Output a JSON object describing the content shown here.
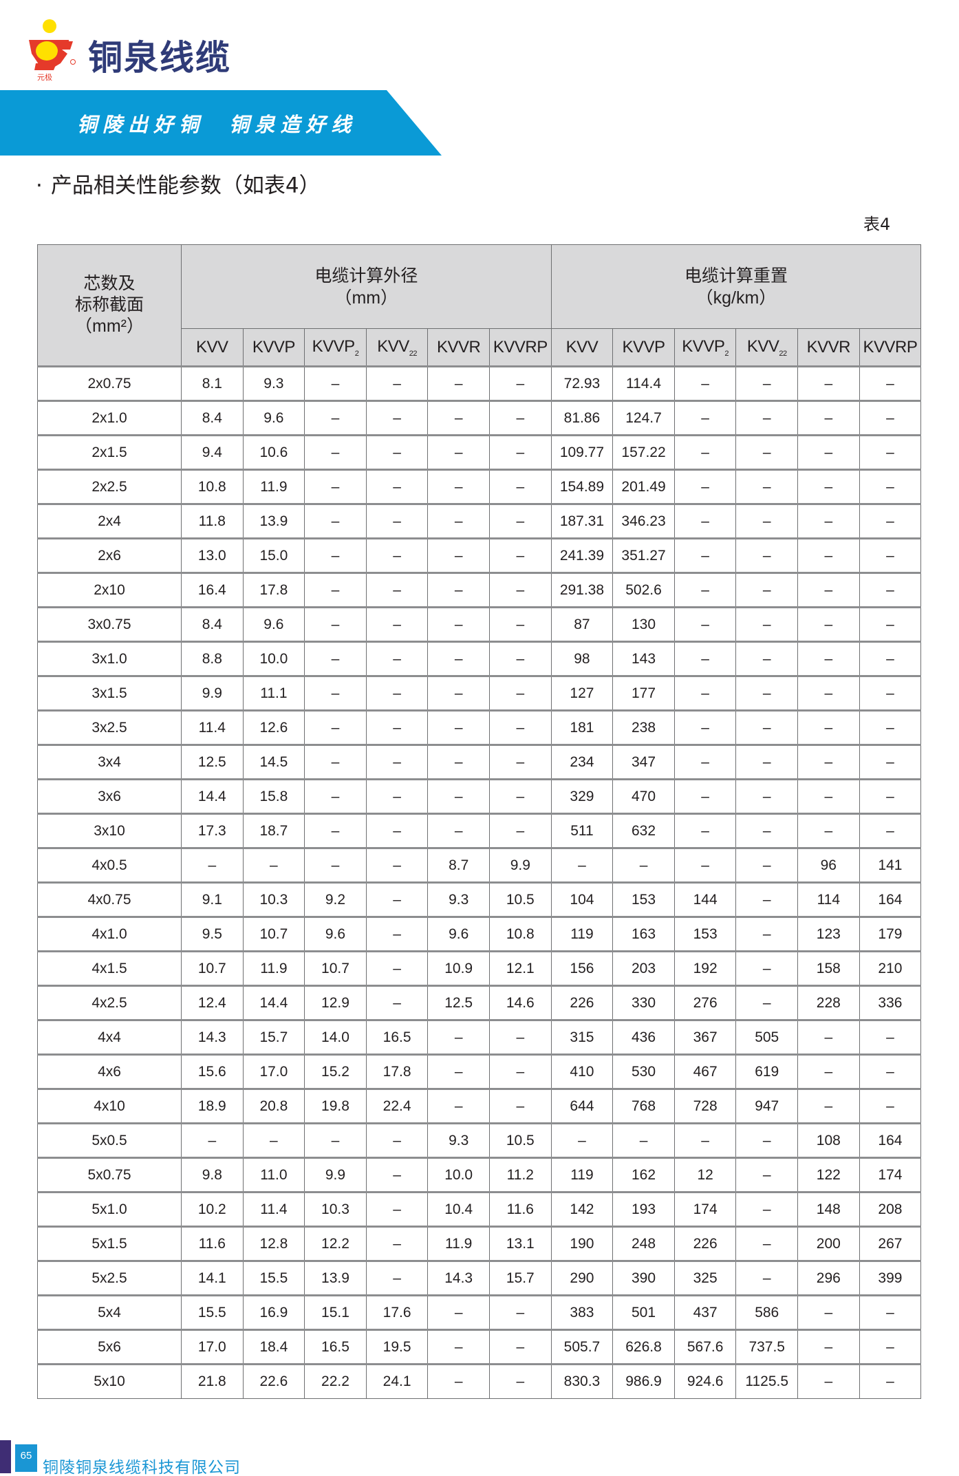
{
  "header": {
    "brand": "铜泉线缆",
    "logo_text": "元极",
    "slogan": "铜陵出好铜  铜泉造好线",
    "banner_color": "#0a9ad6",
    "brand_color": "#2f3b78"
  },
  "section": {
    "bullet": "·",
    "title": "产品相关性能参数（如表4）",
    "table_no": "表4"
  },
  "table": {
    "corner": [
      "芯数及",
      "标称截面",
      "（mm²）"
    ],
    "group_diameter": {
      "title": "电缆计算外径",
      "unit": "（mm）"
    },
    "group_weight": {
      "title": "电缆计算重置",
      "unit": "（kg/km）"
    },
    "columns": [
      {
        "base": "KVV",
        "sub": ""
      },
      {
        "base": "KVVP",
        "sub": ""
      },
      {
        "base": "KVVP",
        "sub": "2"
      },
      {
        "base": "KVV",
        "sub": "22"
      },
      {
        "base": "KVVR",
        "sub": ""
      },
      {
        "base": "KVVRP",
        "sub": ""
      },
      {
        "base": "KVV",
        "sub": ""
      },
      {
        "base": "KVVP",
        "sub": ""
      },
      {
        "base": "KVVP",
        "sub": "2"
      },
      {
        "base": "KVV",
        "sub": "22"
      },
      {
        "base": "KVVR",
        "sub": ""
      },
      {
        "base": "KVVRP",
        "sub": ""
      }
    ],
    "rows": [
      [
        "2x0.75",
        "8.1",
        "9.3",
        "–",
        "–",
        "–",
        "–",
        "72.93",
        "114.4",
        "–",
        "–",
        "–",
        "–"
      ],
      [
        "2x1.0",
        "8.4",
        "9.6",
        "–",
        "–",
        "–",
        "–",
        "81.86",
        "124.7",
        "–",
        "–",
        "–",
        "–"
      ],
      [
        "2x1.5",
        "9.4",
        "10.6",
        "–",
        "–",
        "–",
        "–",
        "109.77",
        "157.22",
        "–",
        "–",
        "–",
        "–"
      ],
      [
        "2x2.5",
        "10.8",
        "11.9",
        "–",
        "–",
        "–",
        "–",
        "154.89",
        "201.49",
        "–",
        "–",
        "–",
        "–"
      ],
      [
        "2x4",
        "11.8",
        "13.9",
        "–",
        "–",
        "–",
        "–",
        "187.31",
        "346.23",
        "–",
        "–",
        "–",
        "–"
      ],
      [
        "2x6",
        "13.0",
        "15.0",
        "–",
        "–",
        "–",
        "–",
        "241.39",
        "351.27",
        "–",
        "–",
        "–",
        "–"
      ],
      [
        "2x10",
        "16.4",
        "17.8",
        "–",
        "–",
        "–",
        "–",
        "291.38",
        "502.6",
        "–",
        "–",
        "–",
        "–"
      ],
      [
        "3x0.75",
        "8.4",
        "9.6",
        "–",
        "–",
        "–",
        "–",
        "87",
        "130",
        "–",
        "–",
        "–",
        "–"
      ],
      [
        "3x1.0",
        "8.8",
        "10.0",
        "–",
        "–",
        "–",
        "–",
        "98",
        "143",
        "–",
        "–",
        "–",
        "–"
      ],
      [
        "3x1.5",
        "9.9",
        "11.1",
        "–",
        "–",
        "–",
        "–",
        "127",
        "177",
        "–",
        "–",
        "–",
        "–"
      ],
      [
        "3x2.5",
        "11.4",
        "12.6",
        "–",
        "–",
        "–",
        "–",
        "181",
        "238",
        "–",
        "–",
        "–",
        "–"
      ],
      [
        "3x4",
        "12.5",
        "14.5",
        "–",
        "–",
        "–",
        "–",
        "234",
        "347",
        "–",
        "–",
        "–",
        "–"
      ],
      [
        "3x6",
        "14.4",
        "15.8",
        "–",
        "–",
        "–",
        "–",
        "329",
        "470",
        "–",
        "–",
        "–",
        "–"
      ],
      [
        "3x10",
        "17.3",
        "18.7",
        "–",
        "–",
        "–",
        "–",
        "511",
        "632",
        "–",
        "–",
        "–",
        "–"
      ],
      [
        "4x0.5",
        "–",
        "–",
        "–",
        "–",
        "8.7",
        "9.9",
        "–",
        "–",
        "–",
        "–",
        "96",
        "141"
      ],
      [
        "4x0.75",
        "9.1",
        "10.3",
        "9.2",
        "–",
        "9.3",
        "10.5",
        "104",
        "153",
        "144",
        "–",
        "114",
        "164"
      ],
      [
        "4x1.0",
        "9.5",
        "10.7",
        "9.6",
        "–",
        "9.6",
        "10.8",
        "119",
        "163",
        "153",
        "–",
        "123",
        "179"
      ],
      [
        "4x1.5",
        "10.7",
        "11.9",
        "10.7",
        "–",
        "10.9",
        "12.1",
        "156",
        "203",
        "192",
        "–",
        "158",
        "210"
      ],
      [
        "4x2.5",
        "12.4",
        "14.4",
        "12.9",
        "–",
        "12.5",
        "14.6",
        "226",
        "330",
        "276",
        "–",
        "228",
        "336"
      ],
      [
        "4x4",
        "14.3",
        "15.7",
        "14.0",
        "16.5",
        "–",
        "–",
        "315",
        "436",
        "367",
        "505",
        "–",
        "–"
      ],
      [
        "4x6",
        "15.6",
        "17.0",
        "15.2",
        "17.8",
        "–",
        "–",
        "410",
        "530",
        "467",
        "619",
        "–",
        "–"
      ],
      [
        "4x10",
        "18.9",
        "20.8",
        "19.8",
        "22.4",
        "–",
        "–",
        "644",
        "768",
        "728",
        "947",
        "–",
        "–"
      ],
      [
        "5x0.5",
        "–",
        "–",
        "–",
        "–",
        "9.3",
        "10.5",
        "–",
        "–",
        "–",
        "–",
        "108",
        "164"
      ],
      [
        "5x0.75",
        "9.8",
        "11.0",
        "9.9",
        "–",
        "10.0",
        "11.2",
        "119",
        "162",
        "12",
        "–",
        "122",
        "174"
      ],
      [
        "5x1.0",
        "10.2",
        "11.4",
        "10.3",
        "–",
        "10.4",
        "11.6",
        "142",
        "193",
        "174",
        "–",
        "148",
        "208"
      ],
      [
        "5x1.5",
        "11.6",
        "12.8",
        "12.2",
        "–",
        "11.9",
        "13.1",
        "190",
        "248",
        "226",
        "–",
        "200",
        "267"
      ],
      [
        "5x2.5",
        "14.1",
        "15.5",
        "13.9",
        "–",
        "14.3",
        "15.7",
        "290",
        "390",
        "325",
        "–",
        "296",
        "399"
      ],
      [
        "5x4",
        "15.5",
        "16.9",
        "15.1",
        "17.6",
        "–",
        "–",
        "383",
        "501",
        "437",
        "586",
        "–",
        "–"
      ],
      [
        "5x6",
        "17.0",
        "18.4",
        "16.5",
        "19.5",
        "–",
        "–",
        "505.7",
        "626.8",
        "567.6",
        "737.5",
        "–",
        "–"
      ],
      [
        "5x10",
        "21.8",
        "22.6",
        "22.2",
        "24.1",
        "–",
        "–",
        "830.3",
        "986.9",
        "924.6",
        "1125.5",
        "–",
        "–"
      ]
    ]
  },
  "footer": {
    "page_number": "65",
    "company": "铜陵铜泉线缆科技有限公司",
    "accent_color": "#1a96d4",
    "bar_color": "#3f2d74"
  }
}
